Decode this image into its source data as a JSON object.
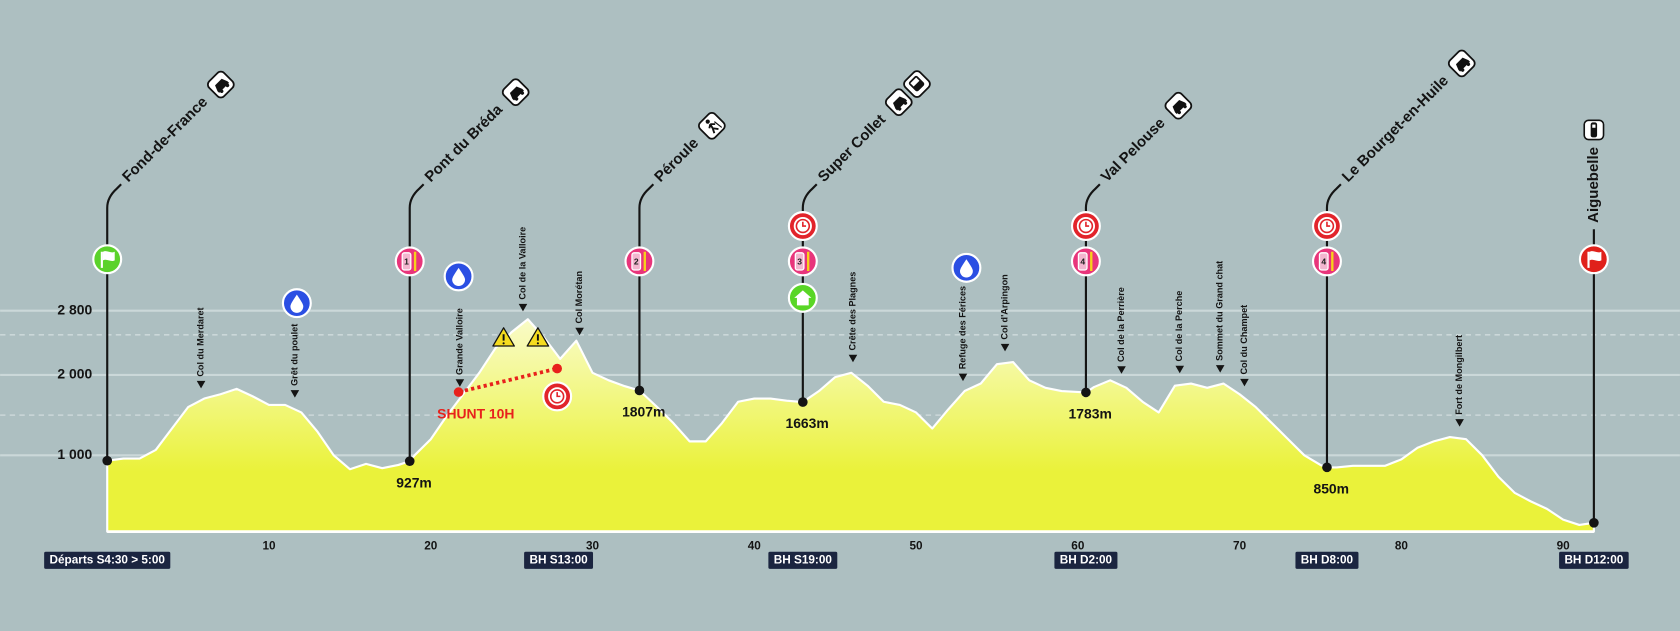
{
  "chart_data": {
    "type": "area",
    "x": [
      0,
      1,
      2,
      3,
      4,
      5,
      6,
      7,
      8,
      9,
      10,
      11,
      12,
      13,
      14,
      15,
      16,
      17,
      18,
      18.7,
      19,
      20,
      21,
      22,
      23,
      24,
      25,
      26,
      27,
      28,
      29,
      30,
      31,
      32,
      32.9,
      34,
      35,
      36,
      37,
      38,
      39,
      40,
      41,
      42,
      43,
      44,
      45,
      46,
      47,
      48,
      49,
      50,
      51,
      52,
      53,
      54,
      55,
      56,
      57,
      58,
      59,
      60.5,
      61,
      62,
      63,
      64,
      65,
      66,
      67,
      68,
      69,
      70,
      71,
      72,
      73,
      74,
      75,
      75.4,
      76,
      77,
      78,
      79,
      80,
      81,
      82,
      83,
      84,
      85,
      86,
      87,
      88,
      89,
      90,
      91,
      91.9
    ],
    "values": [
      933,
      960,
      960,
      1067,
      1333,
      1600,
      1707,
      1760,
      1827,
      1733,
      1627,
      1627,
      1533,
      1293,
      1000,
      827,
      893,
      840,
      880,
      927,
      1000,
      1200,
      1493,
      1760,
      2027,
      2333,
      2533,
      2693,
      2467,
      2200,
      2427,
      2027,
      1933,
      1860,
      1807,
      1600,
      1400,
      1173,
      1173,
      1400,
      1667,
      1707,
      1707,
      1680,
      1663,
      1800,
      1973,
      2027,
      1867,
      1667,
      1627,
      1533,
      1333,
      1573,
      1800,
      1893,
      2133,
      2160,
      1933,
      1840,
      1800,
      1783,
      1850,
      1933,
      1840,
      1667,
      1533,
      1867,
      1893,
      1840,
      1893,
      1760,
      1600,
      1400,
      1200,
      1000,
      880,
      850,
      850,
      870,
      870,
      870,
      950,
      1093,
      1173,
      1227,
      1200,
      1000,
      733,
      533,
      427,
      333,
      200,
      133,
      160
    ],
    "color": "#eaf23a",
    "xlim": [
      0,
      91.9
    ],
    "ylim": [
      50,
      3200
    ],
    "xticks": [
      10,
      20,
      30,
      40,
      50,
      60,
      70,
      80,
      90
    ],
    "yticks": [
      {
        "value": 1000,
        "label": "1 000"
      },
      {
        "value": 2000,
        "label": "2 000"
      },
      {
        "value": 2800,
        "label": "2 800"
      }
    ],
    "yminor": [
      1500,
      2500
    ],
    "grid": true,
    "passes": [
      {
        "name": "Col du Merdaret",
        "km": 5.8
      },
      {
        "name": "Grêt du poulet",
        "km": 11.6
      },
      {
        "name": "Grande Valloire",
        "km": 21.8
      },
      {
        "name": "Col de la Valloire",
        "km": 25.7
      },
      {
        "name": "Col Morétan",
        "km": 29.2
      },
      {
        "name": "Crête des Plagnes",
        "km": 46.1
      },
      {
        "name": "Refuge des Férices",
        "km": 52.9
      },
      {
        "name": "Col d'Arpingon",
        "km": 55.5
      },
      {
        "name": "Col de la Perrière",
        "km": 62.7
      },
      {
        "name": "Col de la Perche",
        "km": 66.3
      },
      {
        "name": "Sommet du Grand chat",
        "km": 68.8
      },
      {
        "name": "Col du Champet",
        "km": 70.3
      },
      {
        "name": "Fort de Mongilbert",
        "km": 83.6
      }
    ],
    "stations": [
      {
        "name": "Fond-de-France",
        "km": 0,
        "elevation": 933,
        "marker": "start",
        "transport": [
          "car"
        ]
      },
      {
        "name": "Pont du Bréda",
        "km": 18.7,
        "elevation": 927,
        "elevation_label": "927m",
        "ravito": 1,
        "transport": [
          "car"
        ]
      },
      {
        "name": "Péroule",
        "km": 32.9,
        "elevation": 1807,
        "elevation_label": "1807m",
        "ravito": 2,
        "transport": [
          "hiker"
        ]
      },
      {
        "name": "Super Collet",
        "km": 43,
        "elevation": 1663,
        "elevation_label": "1663m",
        "ravito": 3,
        "timer": true,
        "base": true,
        "transport": [
          "car",
          "bus"
        ]
      },
      {
        "name": "Val Pelouse",
        "km": 60.5,
        "elevation": 1783,
        "elevation_label": "1783m",
        "ravito": 4,
        "timer": true,
        "transport": [
          "car"
        ]
      },
      {
        "name": "Le Bourget-en-Huile",
        "km": 75.4,
        "elevation": 850,
        "elevation_label": "850m",
        "ravito": 4,
        "timer": true,
        "transport": [
          "car"
        ]
      },
      {
        "name": "Aiguebelle",
        "km": 91.9,
        "elevation": 160,
        "marker": "finish",
        "label": "vertical",
        "transport": [
          "train"
        ]
      }
    ],
    "checkpoints": [
      {
        "km": 0,
        "label": "Départs S4:30 > 5:00"
      },
      {
        "km": 27.9,
        "label": "BH S13:00"
      },
      {
        "km": 43,
        "label": "BH S19:00"
      },
      {
        "km": 60.5,
        "label": "BH D2:00"
      },
      {
        "km": 75.4,
        "label": "BH D8:00"
      },
      {
        "km": 91.9,
        "label": "BH D12:00"
      }
    ],
    "annotations": [
      "SHUNT 10H"
    ]
  }
}
